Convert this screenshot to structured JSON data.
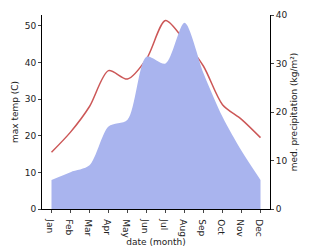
{
  "chart_data": {
    "type": "line",
    "categories": [
      "Jan",
      "Feb",
      "Mar",
      "Apr",
      "May",
      "Jun",
      "Jul",
      "Aug",
      "Sep",
      "Oct",
      "Nov",
      "Dec"
    ],
    "x_label": "date (month)",
    "y_label": "max temp (C)",
    "y2_label": "med. precipitation (kg/m²)",
    "series": [
      {
        "type": "area",
        "axis": "y2",
        "color": "#a9b4ee",
        "values": [
          6,
          7.6,
          9,
          17,
          18.4,
          31.4,
          30,
          38.4,
          28,
          19,
          12,
          6
        ]
      },
      {
        "type": "line",
        "axis": "y",
        "color": "#cc5757",
        "values": [
          15.5,
          21,
          28,
          37.8,
          35.5,
          41,
          51.5,
          46,
          39,
          28.5,
          24.5,
          19.5
        ]
      }
    ],
    "ylim": [
      0,
      53
    ],
    "yticks": [
      0,
      10,
      20,
      30,
      40,
      50
    ],
    "y2lim": [
      0,
      40
    ],
    "y2ticks": [
      0,
      10,
      20,
      30,
      40
    ],
    "grid": false
  }
}
